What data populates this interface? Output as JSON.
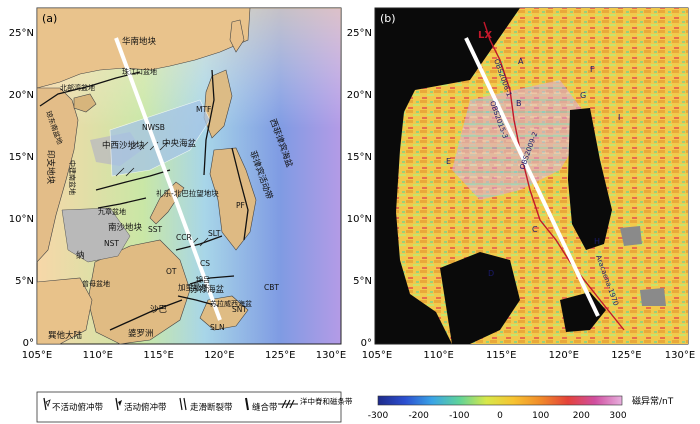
{
  "panel_a": {
    "tag": "(a)",
    "x_ticks": [
      "105°E",
      "110°E",
      "115°E",
      "120°E",
      "125°E",
      "130°E"
    ],
    "y_ticks": [
      "25°N",
      "20°N",
      "15°N",
      "10°N",
      "5°N",
      "0°"
    ],
    "labels": [
      {
        "id": "south-china-block",
        "text": "华南地块"
      },
      {
        "id": "pearl-river-mouth-basin",
        "text": "珠江口盆地"
      },
      {
        "id": "beibu-gulf-basin",
        "text": "北部湾盆地"
      },
      {
        "id": "qiongdongnan-basin",
        "text": "琼东南盆地"
      },
      {
        "id": "xisha-block",
        "text": "中西沙地块"
      },
      {
        "id": "central-basin",
        "text": "中央海盆"
      },
      {
        "id": "nwsb",
        "text": "NWSB"
      },
      {
        "id": "mtf",
        "text": "MTF"
      },
      {
        "id": "west-philippine-sea",
        "text": "西菲律宾海盆"
      },
      {
        "id": "philippine-mobile-belt",
        "text": "菲律宾活动带"
      },
      {
        "id": "indochina-block",
        "text": "印支地块"
      },
      {
        "id": "zhongjiannan-basin",
        "text": "中建南盆地"
      },
      {
        "id": "liyue-palawan-block",
        "text": "礼乐-北巴拉望地块"
      },
      {
        "id": "nansha-block",
        "text": "南沙地块"
      },
      {
        "id": "zengmu-basin",
        "text": "曾母盆地"
      },
      {
        "id": "jiulong-basin",
        "text": "九章盆地"
      },
      {
        "id": "kalimantan",
        "text": "加里曼丹"
      },
      {
        "id": "sulu-basin",
        "text": "苏禄海盆"
      },
      {
        "id": "nst",
        "text": "NST"
      },
      {
        "id": "sst",
        "text": "SST"
      },
      {
        "id": "ccr",
        "text": "CCR"
      },
      {
        "id": "cs",
        "text": "CS"
      },
      {
        "id": "slt",
        "text": "SLT"
      },
      {
        "id": "pf",
        "text": "PF"
      },
      {
        "id": "snt",
        "text": "SNT"
      },
      {
        "id": "slnt",
        "text": "SLN"
      },
      {
        "id": "ot",
        "text": "OT"
      },
      {
        "id": "cbt",
        "text": "CBT"
      },
      {
        "id": "sabah",
        "text": "沙巴"
      },
      {
        "id": "sundaland",
        "text": "巽他大陆"
      },
      {
        "id": "borneo",
        "text": "婆罗洲"
      },
      {
        "id": "jinyu",
        "text": "锦吕"
      },
      {
        "id": "jana",
        "text": "纳"
      },
      {
        "id": "celebes-basin",
        "text": "苏拉威西海盆"
      }
    ]
  },
  "panel_b": {
    "tag": "(b)",
    "x_ticks": [
      "105°E",
      "110°E",
      "115°E",
      "120°E",
      "125°E",
      "130°E"
    ],
    "y_ticks": [
      "25°N",
      "20°N",
      "15°N",
      "10°N",
      "5°N",
      "0°"
    ],
    "labels": [
      {
        "id": "lx",
        "text": "LX"
      },
      {
        "id": "profile-a",
        "text": "A"
      },
      {
        "id": "profile-b",
        "text": "B"
      },
      {
        "id": "profile-c",
        "text": "C"
      },
      {
        "id": "profile-d",
        "text": "D"
      },
      {
        "id": "profile-e",
        "text": "E"
      },
      {
        "id": "profile-f",
        "text": "F"
      },
      {
        "id": "profile-g",
        "text": "G"
      },
      {
        "id": "profile-h",
        "text": "H"
      },
      {
        "id": "profile-i",
        "text": "I"
      },
      {
        "id": "osl1",
        "text": "OBS2006-1"
      },
      {
        "id": "osl2",
        "text": "OBS2015-3"
      },
      {
        "id": "osl3",
        "text": "OBS2009-2"
      },
      {
        "id": "osl4",
        "text": "Aracaena-1970"
      }
    ]
  },
  "legend": {
    "items": [
      {
        "id": "inactive-thrust",
        "text": "不活动俯冲带"
      },
      {
        "id": "active-thrust",
        "text": "活动俯冲带"
      },
      {
        "id": "strike-slip",
        "text": "走滑断裂带"
      },
      {
        "id": "suture",
        "text": "缝合带"
      },
      {
        "id": "ridge",
        "text": "洋中脊和磁条带"
      }
    ]
  },
  "colorbar": {
    "unit_label": "磁异常/nT",
    "ticks": [
      "-300",
      "-200",
      "-100",
      "0",
      "100",
      "200",
      "300"
    ],
    "colors": [
      "#1e2a8a",
      "#2c4fd0",
      "#3aa4e6",
      "#5fd39a",
      "#d7e84a",
      "#f7c331",
      "#f08a2a",
      "#e4423a",
      "#d04fa0",
      "#e7b0de"
    ]
  }
}
